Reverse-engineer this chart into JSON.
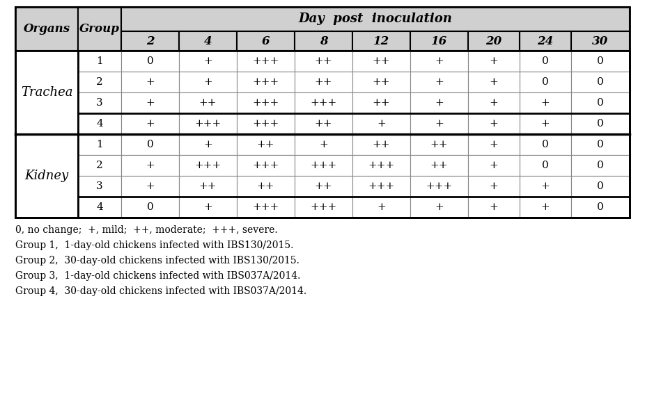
{
  "trachea_data": [
    [
      "1",
      "0",
      "+",
      "+++",
      "++",
      "++",
      "+",
      "+",
      "0",
      "0"
    ],
    [
      "2",
      "+",
      "+",
      "+++",
      "++",
      "++",
      "+",
      "+",
      "0",
      "0"
    ],
    [
      "3",
      "+",
      "++",
      "+++",
      "+++",
      "++",
      "+",
      "+",
      "+",
      "0"
    ],
    [
      "4",
      "+",
      "+++",
      "+++",
      "++",
      "+",
      "+",
      "+",
      "+",
      "0"
    ]
  ],
  "kidney_data": [
    [
      "1",
      "0",
      "+",
      "++",
      "+",
      "++",
      "++",
      "+",
      "0",
      "0"
    ],
    [
      "2",
      "+",
      "+++",
      "+++",
      "+++",
      "+++",
      "++",
      "+",
      "0",
      "0"
    ],
    [
      "3",
      "+",
      "++",
      "++",
      "++",
      "+++",
      "+++",
      "+",
      "+",
      "0"
    ],
    [
      "4",
      "0",
      "+",
      "+++",
      "+++",
      "+",
      "+",
      "+",
      "+",
      "0"
    ]
  ],
  "day_labels": [
    "2",
    "4",
    "6",
    "8",
    "12",
    "16",
    "20",
    "24",
    "30"
  ],
  "footnotes": [
    "0, no change;  +, mild;  ++, moderate;  +++, severe.",
    "Group 1,  1-day-old chickens infected with IBS130/2015.",
    "Group 2,  30-day-old chickens infected with IBS130/2015.",
    "Group 3,  1-day-old chickens infected with IBS037A/2014.",
    "Group 4,  30-day-old chickens infected with IBS037A/2014."
  ],
  "header_bg": "#d0d0d0",
  "white": "#ffffff",
  "black": "#000000",
  "gray_line": "#888888",
  "font_size": 11,
  "header_font_size": 12,
  "footnote_font_size": 10,
  "dpi_title": "Day  post  inoculation"
}
